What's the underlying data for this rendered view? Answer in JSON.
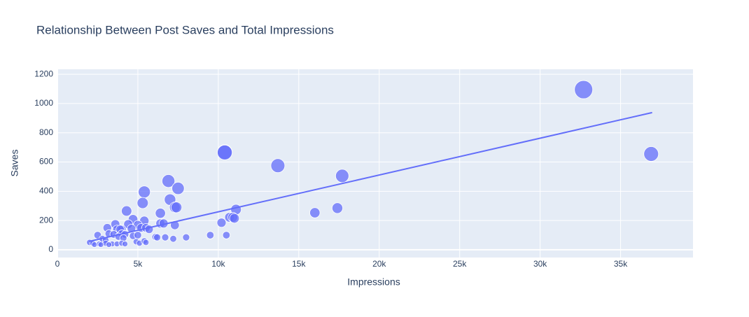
{
  "chart_data": {
    "type": "scatter",
    "title": "Relationship Between Post Saves and Total Impressions",
    "x_label": "Impressions",
    "y_label": "Saves",
    "xlim": [
      0,
      39500
    ],
    "ylim": [
      -53,
      1234
    ],
    "xticks": [
      0,
      {
        "value": 5000,
        "label": "5k"
      },
      {
        "value": 10000,
        "label": "10k"
      },
      {
        "value": 15000,
        "label": "15k"
      },
      {
        "value": 20000,
        "label": "20k"
      },
      {
        "value": 25000,
        "label": "25k"
      },
      {
        "value": 30000,
        "label": "30k"
      },
      {
        "value": 35000,
        "label": "35k"
      }
    ],
    "yticks": [
      0,
      200,
      400,
      600,
      800,
      1000,
      1200
    ],
    "grid": true,
    "series": [
      {
        "color": "#636efa",
        "mode": "markers",
        "x": [
          32700,
          36900,
          10400,
          10400,
          13700,
          17700,
          6900,
          7500,
          5400,
          5300,
          7000,
          7300,
          7400,
          4300,
          6400,
          11100,
          16000,
          17400,
          10700,
          10900,
          11000,
          10200,
          6400,
          6600,
          4700,
          5400,
          7300,
          4400,
          3600,
          5000,
          3100,
          3700,
          4000,
          4600,
          5200,
          5500,
          5700,
          3900,
          3200,
          3500,
          4000,
          4200,
          4700,
          5000,
          2500,
          3800,
          4100,
          2800,
          3000,
          6100,
          6200,
          6700,
          7200,
          8000,
          9500,
          10500,
          2000,
          2200,
          2600,
          3000,
          3400,
          3700,
          4000,
          4200,
          4900,
          5100,
          5400,
          5500,
          2300,
          2700,
          3200
        ],
        "values": [
          1095,
          655,
          668,
          665,
          575,
          505,
          470,
          420,
          395,
          320,
          343,
          290,
          290,
          265,
          250,
          275,
          253,
          285,
          222,
          222,
          215,
          185,
          180,
          180,
          208,
          198,
          168,
          175,
          175,
          170,
          150,
          140,
          140,
          145,
          150,
          150,
          140,
          140,
          110,
          105,
          110,
          105,
          95,
          100,
          100,
          90,
          80,
          75,
          65,
          88,
          85,
          85,
          75,
          85,
          100,
          100,
          50,
          45,
          40,
          45,
          40,
          40,
          45,
          40,
          55,
          45,
          60,
          50,
          35,
          35,
          35
        ]
      },
      {
        "color": "#636efa",
        "mode": "lines",
        "x": [
          1960,
          36960
        ],
        "values": [
          57,
          938
        ]
      }
    ]
  }
}
